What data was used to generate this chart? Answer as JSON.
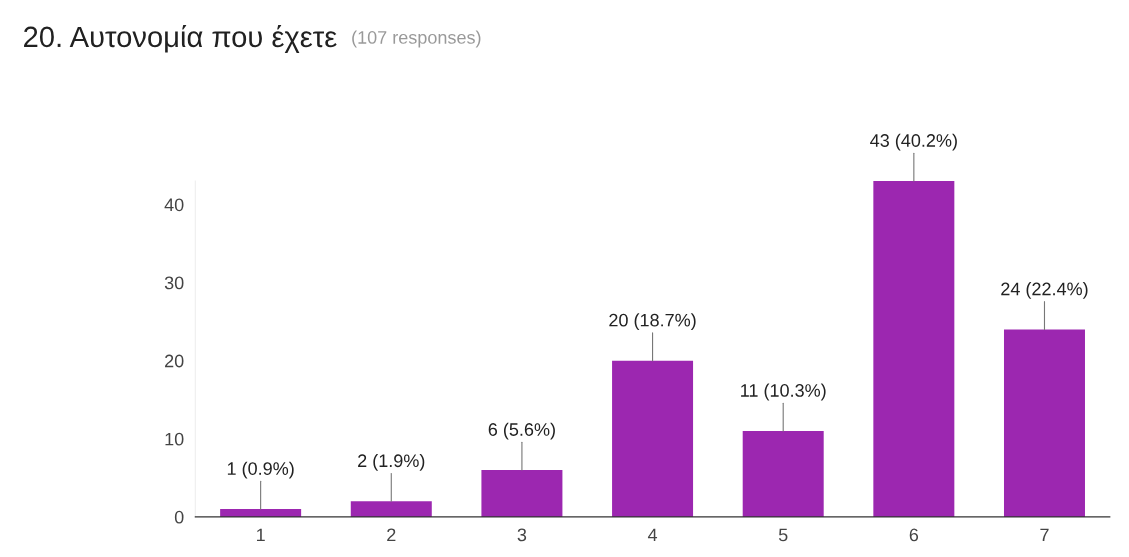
{
  "chart_data": {
    "type": "bar",
    "title": "20. Αυτονομία που έχετε",
    "subtitle": "(107 responses)",
    "categories": [
      "1",
      "2",
      "3",
      "4",
      "5",
      "6",
      "7"
    ],
    "values": [
      1,
      2,
      6,
      20,
      11,
      43,
      24
    ],
    "value_labels": [
      "1 (0.9%)",
      "2 (1.9%)",
      "6 (5.6%)",
      "20 (18.7%)",
      "11 (10.3%)",
      "43 (40.2%)",
      "24 (22.4%)"
    ],
    "color": "#9c27b0",
    "ylim": [
      0,
      43
    ],
    "yticks": [
      0,
      10,
      20,
      30,
      40
    ],
    "grid": false,
    "legend": false
  }
}
